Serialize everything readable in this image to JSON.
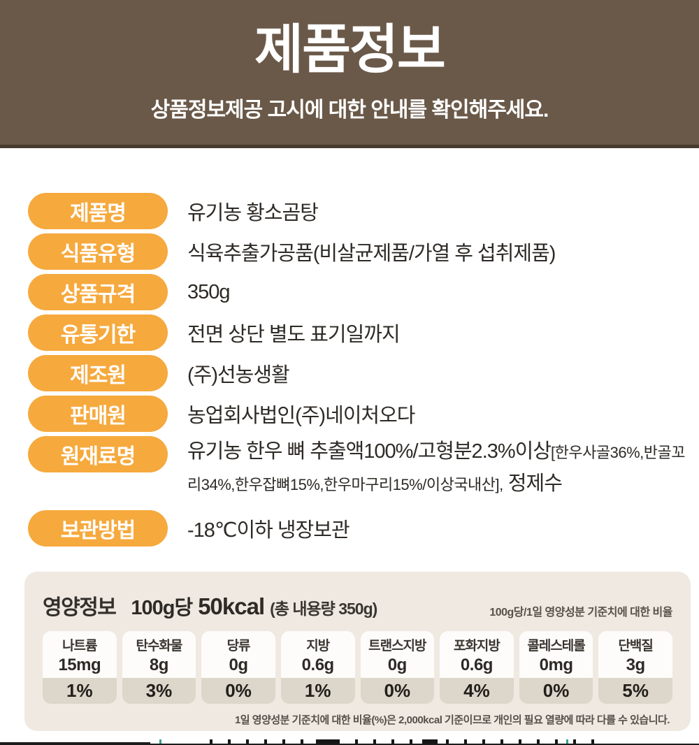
{
  "header": {
    "title": "제품정보",
    "subtitle": "상품정보제공 고시에 대한 안내를 확인해주세요."
  },
  "product_info": {
    "rows": [
      {
        "label": "제품명",
        "value": "유기농 황소곰탕"
      },
      {
        "label": "식품유형",
        "value": "식육추출가공품(비살균제품/가열 후 섭취제품)"
      },
      {
        "label": "상품규격",
        "value": "350g"
      },
      {
        "label": "유통기한",
        "value": "전면 상단 별도 표기일까지"
      },
      {
        "label": "제조원",
        "value": "(주)선농생활"
      },
      {
        "label": "판매원",
        "value": "농업회사법인(주)네이처오다"
      },
      {
        "label": "원재료명",
        "value_main": "유기농 한우 뼈 추출액100%/고형분2.3%이상",
        "value_detail": "[한우사골36%,반골꼬리34%,한우잡뼈15%,한우마구리15%/이상국내산],",
        "value_tail": "정제수"
      },
      {
        "label": "보관방법",
        "value": "-18℃이하 냉장보관"
      }
    ]
  },
  "nutrition": {
    "section_title": "영양정보",
    "serving": "100g당",
    "calories": "50kcal",
    "total_note": "(총 내용량 350g)",
    "daily_value_note": "100g당/1일 영양성분 기준치에 대한 비율",
    "items": [
      {
        "name": "나트륨",
        "amount": "15mg",
        "percent": "1%"
      },
      {
        "name": "탄수화물",
        "amount": "8g",
        "percent": "3%"
      },
      {
        "name": "당류",
        "amount": "0g",
        "percent": "0%"
      },
      {
        "name": "지방",
        "amount": "0.6g",
        "percent": "1%"
      },
      {
        "name": "트랜스지방",
        "amount": "0g",
        "percent": "0%"
      },
      {
        "name": "포화지방",
        "amount": "0.6g",
        "percent": "4%"
      },
      {
        "name": "콜레스테롤",
        "amount": "0mg",
        "percent": "0%"
      },
      {
        "name": "단백질",
        "amount": "3g",
        "percent": "5%"
      }
    ],
    "footnote": "1일 영양성분 기준치에 대한 비율(%)은 2,000kcal 기준이므로 개인의 필요 열량에 따라 다를 수 있습니다."
  },
  "colors": {
    "header_bg": "#6a5949",
    "header_border": "#473a2e",
    "pill_bg": "#f6a93d",
    "box_bg": "#efe9e1",
    "cell_bg": "#fdfcfa",
    "pct_bg": "#ddd6ca"
  }
}
